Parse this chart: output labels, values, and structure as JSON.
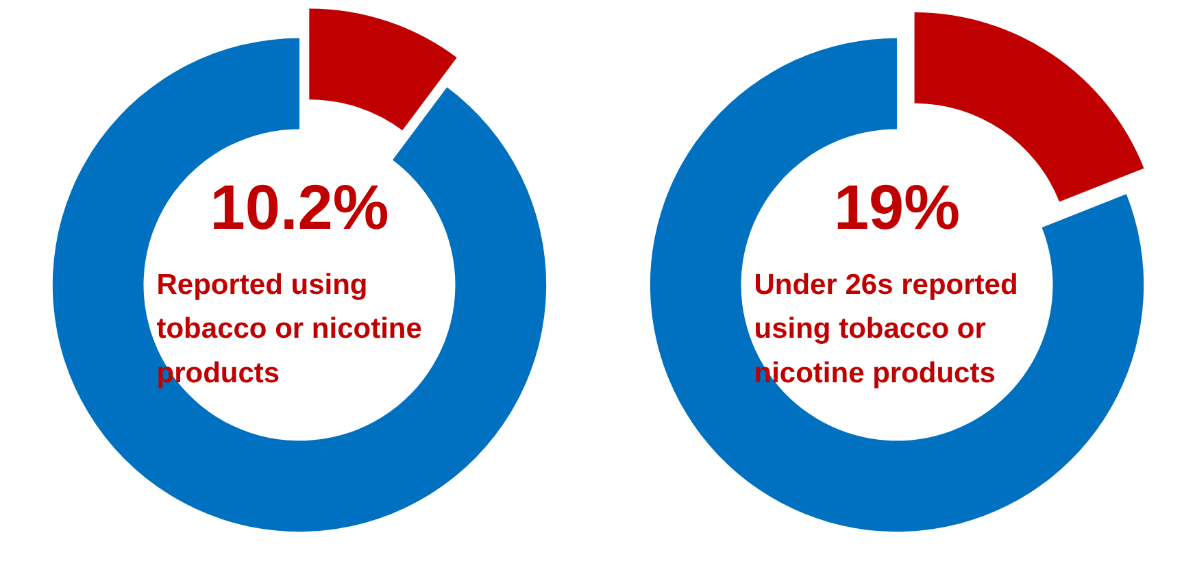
{
  "chart_data": [
    {
      "type": "donut",
      "categories": [
        null,
        null
      ],
      "values": [
        10.2,
        89.8
      ],
      "colors": [
        "#c00000",
        "#0070c0"
      ],
      "value_labels": [
        "10.2%",
        null
      ],
      "annotations": [
        "Reported using tobacco or nicotine products"
      ]
    },
    {
      "type": "donut",
      "categories": [
        null,
        null
      ],
      "values": [
        19,
        81
      ],
      "colors": [
        "#c00000",
        "#0070c0"
      ],
      "value_labels": [
        "19%",
        null
      ],
      "annotations": [
        "Under 26s reported using tobacco or nicotine products"
      ]
    }
  ]
}
